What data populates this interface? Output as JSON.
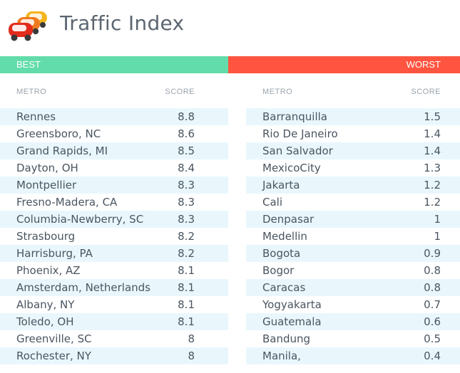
{
  "header": {
    "title": "Traffic Index",
    "logo_icon": "traffic-cars-icon"
  },
  "colors": {
    "best": "#62dcaa",
    "worst": "#ff5540",
    "row_stripe": "#e9f7fd"
  },
  "best": {
    "label": "BEST",
    "columns": {
      "metro": "METRO",
      "score": "SCORE"
    },
    "rows": [
      {
        "metro": "Rennes",
        "score": "8.8"
      },
      {
        "metro": "Greensboro, NC",
        "score": "8.6"
      },
      {
        "metro": "Grand Rapids, MI",
        "score": "8.5"
      },
      {
        "metro": "Dayton, OH",
        "score": "8.4"
      },
      {
        "metro": "Montpellier",
        "score": "8.3"
      },
      {
        "metro": "Fresno-Madera, CA",
        "score": "8.3"
      },
      {
        "metro": "Columbia-Newberry, SC",
        "score": "8.3"
      },
      {
        "metro": "Strasbourg",
        "score": "8.2"
      },
      {
        "metro": "Harrisburg, PA",
        "score": "8.2"
      },
      {
        "metro": "Phoenix, AZ",
        "score": "8.1"
      },
      {
        "metro": "Amsterdam, Netherlands",
        "score": "8.1"
      },
      {
        "metro": "Albany, NY",
        "score": "8.1"
      },
      {
        "metro": "Toledo, OH",
        "score": "8.1"
      },
      {
        "metro": "Greenville, SC",
        "score": "8"
      },
      {
        "metro": "Rochester, NY",
        "score": "8"
      }
    ]
  },
  "worst": {
    "label": "WORST",
    "columns": {
      "metro": "METRO",
      "score": "SCORE"
    },
    "rows": [
      {
        "metro": "Barranquilla",
        "score": "1.5"
      },
      {
        "metro": "Rio De Janeiro",
        "score": "1.4"
      },
      {
        "metro": "San Salvador",
        "score": "1.4"
      },
      {
        "metro": "MexicoCity",
        "score": "1.3"
      },
      {
        "metro": "Jakarta",
        "score": "1.2"
      },
      {
        "metro": "Cali",
        "score": "1.2"
      },
      {
        "metro": "Denpasar",
        "score": "1"
      },
      {
        "metro": "Medellin",
        "score": "1"
      },
      {
        "metro": "Bogota",
        "score": "0.9"
      },
      {
        "metro": "Bogor",
        "score": "0.8"
      },
      {
        "metro": "Caracas",
        "score": "0.8"
      },
      {
        "metro": "Yogyakarta",
        "score": "0.7"
      },
      {
        "metro": "Guatemala",
        "score": "0.6"
      },
      {
        "metro": "Bandung",
        "score": "0.5"
      },
      {
        "metro": "Manila,",
        "score": "0.4"
      }
    ]
  }
}
